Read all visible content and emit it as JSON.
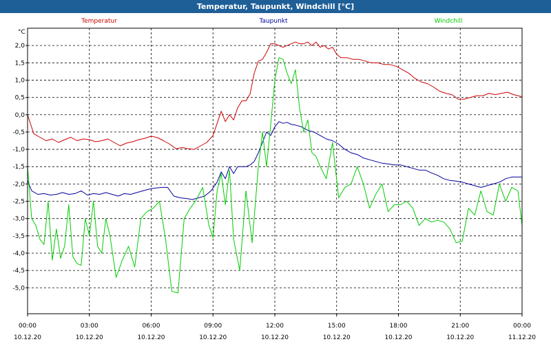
{
  "chart_data": {
    "type": "line",
    "title": "Temperatur, Taupunkt, Windchill [°C]",
    "ylabel": "°C",
    "ylim": [
      -5.75,
      2.5
    ],
    "yticks": [
      "2,0",
      "1,5",
      "1,0",
      "0,5",
      "0,0",
      "-0,5",
      "-1,0",
      "-1,5",
      "-2,0",
      "-2,5",
      "-3,0",
      "-3,5",
      "-4,0",
      "-4,5",
      "-5,0"
    ],
    "xlim": [
      0,
      24
    ],
    "xticks": [
      {
        "time": "00:00",
        "date": "10.12.20"
      },
      {
        "time": "03:00",
        "date": "10.12.20"
      },
      {
        "time": "06:00",
        "date": "10.12.20"
      },
      {
        "time": "09:00",
        "date": "10.12.20"
      },
      {
        "time": "12:00",
        "date": "10.12.20"
      },
      {
        "time": "15:00",
        "date": "10.12.20"
      },
      {
        "time": "18:00",
        "date": "10.12.20"
      },
      {
        "time": "21:00",
        "date": "10.12.20"
      },
      {
        "time": "00:00",
        "date": "11.12.20"
      }
    ],
    "grid": true,
    "legend_position": "top",
    "series": [
      {
        "name": "Temperatur",
        "color": "#cc0000",
        "x": [
          0,
          0.3,
          0.6,
          0.9,
          1.2,
          1.5,
          1.8,
          2.1,
          2.4,
          2.7,
          3.0,
          3.3,
          3.6,
          3.9,
          4.2,
          4.5,
          4.8,
          5.1,
          5.4,
          5.7,
          6.0,
          6.3,
          6.6,
          6.9,
          7.2,
          7.5,
          7.8,
          8.1,
          8.4,
          8.7,
          9.0,
          9.2,
          9.4,
          9.6,
          9.8,
          10.0,
          10.2,
          10.4,
          10.6,
          10.8,
          11.0,
          11.2,
          11.4,
          11.6,
          11.8,
          12.0,
          12.2,
          12.4,
          12.6,
          12.8,
          13.0,
          13.2,
          13.4,
          13.6,
          13.8,
          14.0,
          14.2,
          14.4,
          14.6,
          14.8,
          15.0,
          15.2,
          15.5,
          15.8,
          16.1,
          16.4,
          16.7,
          17.0,
          17.3,
          17.6,
          17.9,
          18.2,
          18.5,
          18.8,
          19.1,
          19.4,
          19.7,
          20.0,
          20.3,
          20.6,
          20.9,
          21.2,
          21.5,
          21.8,
          22.1,
          22.4,
          22.7,
          23.0,
          23.3,
          23.6,
          24.0
        ],
        "y": [
          0.0,
          -0.55,
          -0.65,
          -0.75,
          -0.7,
          -0.8,
          -0.72,
          -0.65,
          -0.75,
          -0.7,
          -0.72,
          -0.78,
          -0.75,
          -0.7,
          -0.8,
          -0.9,
          -0.82,
          -0.78,
          -0.72,
          -0.68,
          -0.62,
          -0.66,
          -0.75,
          -0.85,
          -0.98,
          -0.95,
          -0.98,
          -1.0,
          -0.9,
          -0.8,
          -0.6,
          -0.25,
          0.1,
          -0.2,
          0.0,
          -0.15,
          0.2,
          0.4,
          0.4,
          0.6,
          1.2,
          1.55,
          1.6,
          1.8,
          2.05,
          2.05,
          2.0,
          1.95,
          2.0,
          2.05,
          2.1,
          2.05,
          2.05,
          2.1,
          2.0,
          2.1,
          1.95,
          2.0,
          1.9,
          1.95,
          1.75,
          1.65,
          1.65,
          1.6,
          1.6,
          1.55,
          1.5,
          1.5,
          1.45,
          1.45,
          1.4,
          1.3,
          1.2,
          1.05,
          0.95,
          0.9,
          0.8,
          0.68,
          0.62,
          0.58,
          0.45,
          0.45,
          0.5,
          0.55,
          0.55,
          0.62,
          0.58,
          0.62,
          0.65,
          0.58,
          0.52
        ]
      },
      {
        "name": "Taupunkt",
        "color": "#00009c",
        "x": [
          0,
          0.2,
          0.5,
          0.8,
          1.1,
          1.4,
          1.7,
          2.0,
          2.3,
          2.6,
          2.9,
          3.2,
          3.5,
          3.8,
          4.1,
          4.4,
          4.7,
          5.0,
          5.3,
          5.6,
          5.9,
          6.2,
          6.5,
          6.8,
          7.1,
          7.4,
          7.7,
          8.0,
          8.3,
          8.6,
          8.9,
          9.2,
          9.4,
          9.6,
          9.8,
          10.0,
          10.2,
          10.4,
          10.6,
          10.8,
          11.0,
          11.2,
          11.4,
          11.6,
          11.8,
          12.0,
          12.2,
          12.4,
          12.6,
          12.8,
          13.0,
          13.3,
          13.6,
          13.9,
          14.2,
          14.5,
          14.8,
          15.1,
          15.4,
          15.7,
          16.0,
          16.3,
          16.6,
          16.9,
          17.2,
          17.5,
          17.8,
          18.1,
          18.4,
          18.7,
          19.0,
          19.3,
          19.6,
          19.9,
          20.2,
          20.5,
          20.8,
          21.1,
          21.4,
          21.7,
          22.0,
          22.3,
          22.6,
          22.9,
          23.2,
          23.5,
          23.8,
          24.0
        ],
        "y": [
          -1.9,
          -2.2,
          -2.3,
          -2.28,
          -2.32,
          -2.3,
          -2.25,
          -2.3,
          -2.28,
          -2.2,
          -2.32,
          -2.28,
          -2.3,
          -2.25,
          -2.3,
          -2.35,
          -2.28,
          -2.3,
          -2.25,
          -2.2,
          -2.15,
          -2.12,
          -2.1,
          -2.1,
          -2.35,
          -2.4,
          -2.42,
          -2.45,
          -2.4,
          -2.35,
          -2.2,
          -1.95,
          -1.65,
          -1.85,
          -1.5,
          -1.7,
          -1.5,
          -1.5,
          -1.5,
          -1.45,
          -1.35,
          -1.1,
          -0.8,
          -0.5,
          -0.6,
          -0.35,
          -0.2,
          -0.25,
          -0.22,
          -0.28,
          -0.3,
          -0.35,
          -0.45,
          -0.5,
          -0.6,
          -0.7,
          -0.75,
          -0.85,
          -1.0,
          -1.1,
          -1.15,
          -1.25,
          -1.3,
          -1.35,
          -1.4,
          -1.42,
          -1.45,
          -1.45,
          -1.5,
          -1.55,
          -1.6,
          -1.6,
          -1.68,
          -1.75,
          -1.85,
          -1.9,
          -1.92,
          -1.95,
          -2.0,
          -2.05,
          -2.1,
          -2.05,
          -2.0,
          -1.95,
          -1.85,
          -1.8,
          -1.8,
          -1.8
        ]
      },
      {
        "name": "Windchill",
        "color": "#00cc00",
        "x": [
          0,
          0.2,
          0.4,
          0.6,
          0.8,
          1.0,
          1.2,
          1.4,
          1.6,
          1.8,
          2.0,
          2.2,
          2.4,
          2.6,
          2.8,
          3.0,
          3.2,
          3.4,
          3.6,
          3.8,
          4.0,
          4.3,
          4.6,
          4.9,
          5.2,
          5.5,
          5.8,
          6.1,
          6.4,
          6.7,
          7.0,
          7.3,
          7.6,
          7.9,
          8.2,
          8.5,
          8.8,
          9.0,
          9.2,
          9.4,
          9.6,
          9.8,
          10.0,
          10.3,
          10.6,
          10.9,
          11.2,
          11.4,
          11.6,
          11.8,
          12.0,
          12.2,
          12.4,
          12.6,
          12.8,
          13.0,
          13.2,
          13.4,
          13.6,
          13.8,
          14.0,
          14.2,
          14.5,
          14.8,
          15.1,
          15.4,
          15.7,
          16.0,
          16.3,
          16.6,
          16.9,
          17.2,
          17.5,
          17.8,
          18.1,
          18.4,
          18.7,
          19.0,
          19.3,
          19.6,
          19.9,
          20.2,
          20.5,
          20.8,
          21.1,
          21.4,
          21.7,
          22.0,
          22.3,
          22.6,
          22.9,
          23.2,
          23.5,
          23.8,
          24.0
        ],
        "y": [
          -1.5,
          -3.0,
          -3.2,
          -3.6,
          -3.75,
          -2.5,
          -4.2,
          -3.3,
          -4.15,
          -3.8,
          -2.6,
          -4.1,
          -4.3,
          -4.35,
          -3.0,
          -3.5,
          -2.5,
          -3.8,
          -4.0,
          -3.0,
          -3.5,
          -4.7,
          -4.2,
          -3.8,
          -4.4,
          -3.0,
          -2.8,
          -2.7,
          -2.5,
          -3.6,
          -5.1,
          -5.15,
          -3.0,
          -2.7,
          -2.45,
          -2.1,
          -3.2,
          -3.55,
          -2.2,
          -1.7,
          -2.6,
          -1.6,
          -3.6,
          -4.5,
          -2.2,
          -3.7,
          -1.5,
          -0.5,
          -1.5,
          -0.3,
          1.0,
          1.65,
          1.6,
          1.2,
          0.9,
          1.3,
          0.2,
          -0.5,
          -0.15,
          -1.1,
          -1.2,
          -1.5,
          -1.85,
          -0.8,
          -2.4,
          -2.1,
          -2.0,
          -1.5,
          -2.0,
          -2.7,
          -2.3,
          -2.0,
          -2.8,
          -2.6,
          -2.6,
          -2.5,
          -2.7,
          -3.2,
          -3.0,
          -3.1,
          -3.05,
          -3.1,
          -3.3,
          -3.7,
          -3.65,
          -2.7,
          -2.9,
          -2.2,
          -2.8,
          -2.9,
          -2.0,
          -2.5,
          -2.1,
          -2.2,
          -3.2
        ]
      }
    ]
  }
}
